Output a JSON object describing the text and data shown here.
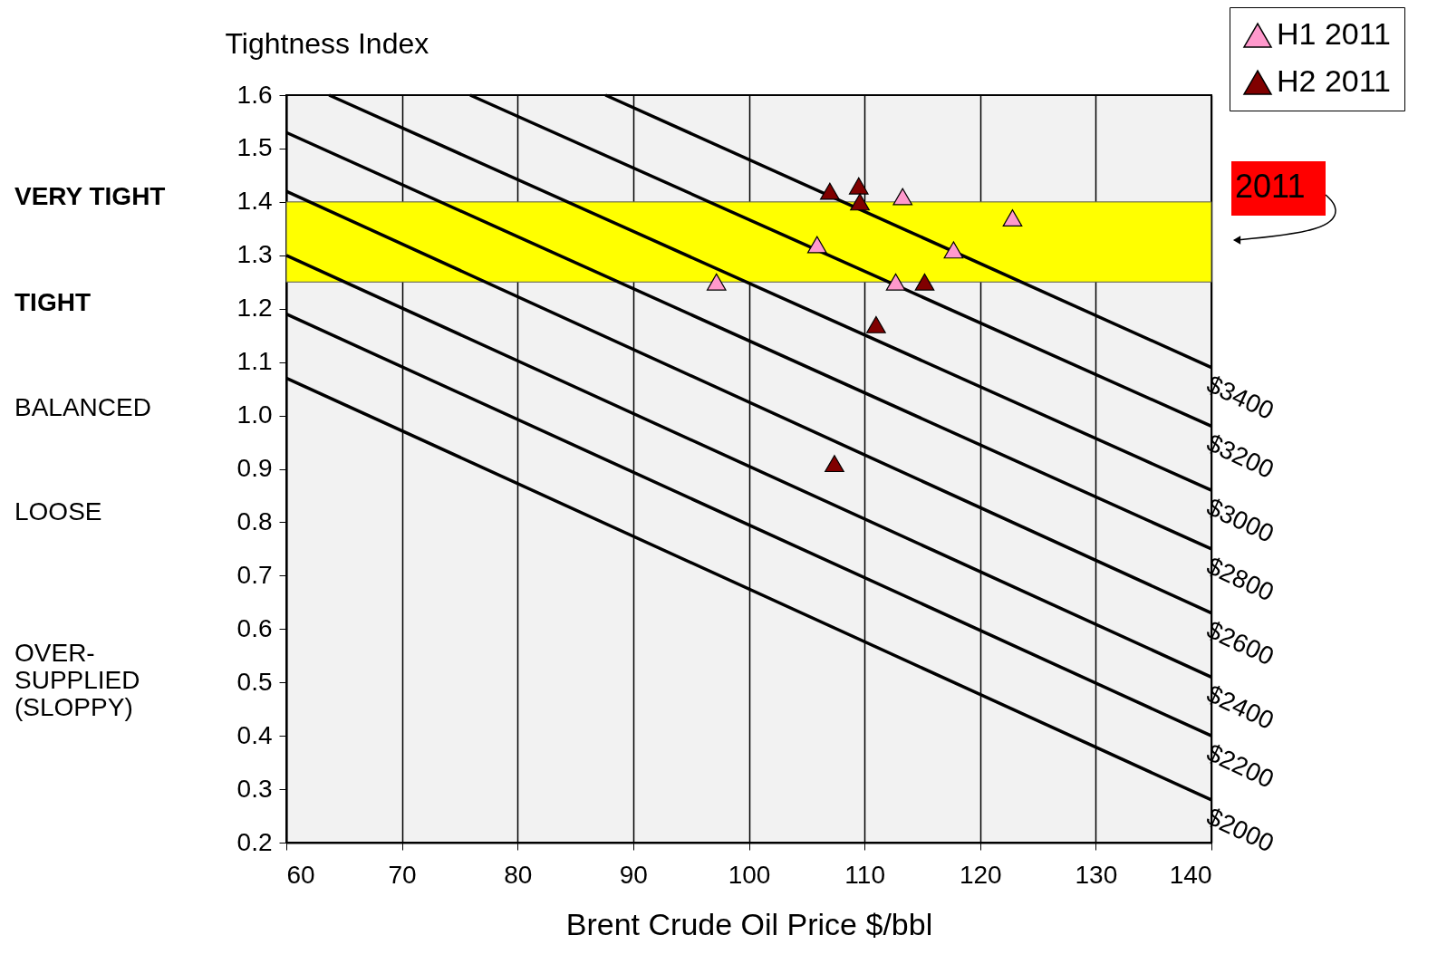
{
  "chart_data": {
    "type": "scatter",
    "ylabel": "Tightness Index",
    "xlabel": "Brent Crude Oil Price $/bbl",
    "xlim": [
      60,
      140
    ],
    "xticks": [
      60,
      70,
      80,
      90,
      100,
      110,
      120,
      130,
      140
    ],
    "ylim": [
      0.2,
      1.6
    ],
    "yticks": [
      0.2,
      0.3,
      0.4,
      0.5,
      0.6,
      0.7,
      0.8,
      0.9,
      {
        "value": 1,
        "label": "1.0"
      },
      1.1,
      1.2,
      1.3,
      1.4,
      1.5,
      1.6
    ],
    "grid": "x",
    "legend": "top right",
    "marker": "triangle",
    "bands": [
      {
        "axis": "y",
        "from": 1.25,
        "to": 1.4,
        "color": "#ffff00"
      }
    ],
    "annotations": [
      "VERY TIGHT",
      "TIGHT",
      "BALANCED",
      "LOOSE",
      "OVER-\nSUPPLIED\n(SLOPPY)",
      "2011"
    ],
    "series": [
      {
        "type": "line",
        "name": "$2000",
        "color": "#000000",
        "marker": "none",
        "x": [
          60,
          140
        ],
        "values": [
          1.07,
          0.28
        ]
      },
      {
        "type": "line",
        "name": "$2200",
        "color": "#000000",
        "marker": "none",
        "x": [
          60,
          140
        ],
        "values": [
          1.19,
          0.4
        ]
      },
      {
        "type": "line",
        "name": "$2400",
        "color": "#000000",
        "marker": "none",
        "x": [
          60,
          140
        ],
        "values": [
          1.3,
          0.51
        ]
      },
      {
        "type": "line",
        "name": "$2600",
        "color": "#000000",
        "marker": "none",
        "x": [
          60,
          140
        ],
        "values": [
          1.42,
          0.63
        ]
      },
      {
        "type": "line",
        "name": "$2800",
        "color": "#000000",
        "marker": "none",
        "x": [
          60,
          140
        ],
        "values": [
          1.53,
          0.75
        ]
      },
      {
        "type": "line",
        "name": "$3000",
        "color": "#000000",
        "marker": "none",
        "x": [
          63.7,
          140
        ],
        "values": [
          1.6,
          0.86
        ]
      },
      {
        "type": "line",
        "name": "$3200",
        "color": "#000000",
        "marker": "none",
        "x": [
          75.9,
          140
        ],
        "values": [
          1.6,
          0.98
        ]
      },
      {
        "type": "line",
        "name": "$3400",
        "color": "#000000",
        "marker": "none",
        "x": [
          87.6,
          140
        ],
        "values": [
          1.6,
          1.09
        ]
      },
      {
        "name": "H1 2011",
        "color": "#ff99cc",
        "x": [
          97.2,
          105.9,
          113.3,
          112.7,
          117.7,
          122.8
        ],
        "values": [
          1.25,
          1.32,
          1.41,
          1.25,
          1.31,
          1.37
        ]
      },
      {
        "name": "H2 2011",
        "color": "#800000",
        "x": [
          107.0,
          109.5,
          109.6,
          115.2,
          111.0,
          107.4
        ],
        "values": [
          1.42,
          1.43,
          1.4,
          1.25,
          1.17,
          0.91
        ]
      }
    ]
  }
}
